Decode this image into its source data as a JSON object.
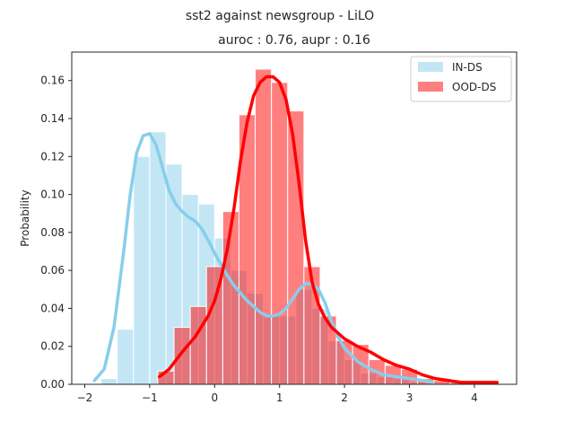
{
  "chart_data": {
    "type": "bar",
    "title": "sst2 against newsgroup  - LiLO",
    "subtitle": "auroc : 0.76, aupr : 0.16",
    "xlabel": "",
    "ylabel": "Probability",
    "xlim": [
      -2.2,
      4.65
    ],
    "ylim": [
      0,
      0.175
    ],
    "xticks": [
      -2,
      -1,
      0,
      1,
      2,
      3,
      4
    ],
    "yticks": [
      0.0,
      0.02,
      0.04,
      0.06,
      0.08,
      0.1,
      0.12,
      0.14,
      0.16
    ],
    "ytick_labels": [
      "0.00",
      "0.02",
      "0.04",
      "0.06",
      "0.08",
      "0.10",
      "0.12",
      "0.14",
      "0.16"
    ],
    "grid": false,
    "legend_position": "top-right",
    "series": [
      {
        "name": "IN-DS",
        "kind": "histogram",
        "color": "#87ceeb",
        "bin_width": 0.25,
        "bins": [
          {
            "x0": -1.75,
            "value": 0.003
          },
          {
            "x0": -1.5,
            "value": 0.029
          },
          {
            "x0": -1.25,
            "value": 0.12
          },
          {
            "x0": -1.0,
            "value": 0.133
          },
          {
            "x0": -0.75,
            "value": 0.116
          },
          {
            "x0": -0.5,
            "value": 0.1
          },
          {
            "x0": -0.25,
            "value": 0.095
          },
          {
            "x0": 0.0,
            "value": 0.077
          },
          {
            "x0": 0.25,
            "value": 0.06
          },
          {
            "x0": 0.5,
            "value": 0.048
          },
          {
            "x0": 0.75,
            "value": 0.037
          },
          {
            "x0": 1.0,
            "value": 0.036
          },
          {
            "x0": 1.25,
            "value": 0.05
          },
          {
            "x0": 1.5,
            "value": 0.04
          },
          {
            "x0": 1.75,
            "value": 0.023
          },
          {
            "x0": 2.0,
            "value": 0.013
          },
          {
            "x0": 2.25,
            "value": 0.006
          },
          {
            "x0": 2.5,
            "value": 0.004
          },
          {
            "x0": 2.75,
            "value": 0.003
          },
          {
            "x0": 3.0,
            "value": 0.001
          }
        ],
        "kde": {
          "x": [
            -1.85,
            -1.7,
            -1.55,
            -1.4,
            -1.3,
            -1.2,
            -1.1,
            -1.0,
            -0.9,
            -0.8,
            -0.7,
            -0.6,
            -0.5,
            -0.4,
            -0.3,
            -0.2,
            -0.1,
            0.0,
            0.1,
            0.2,
            0.3,
            0.4,
            0.5,
            0.6,
            0.7,
            0.8,
            0.9,
            1.0,
            1.1,
            1.2,
            1.3,
            1.4,
            1.5,
            1.6,
            1.7,
            1.8,
            1.9,
            2.0,
            2.2,
            2.4,
            2.6,
            2.8,
            3.0,
            3.2,
            3.35
          ],
          "y": [
            0.002,
            0.008,
            0.03,
            0.07,
            0.1,
            0.122,
            0.131,
            0.132,
            0.126,
            0.114,
            0.102,
            0.095,
            0.091,
            0.088,
            0.086,
            0.082,
            0.076,
            0.069,
            0.063,
            0.057,
            0.052,
            0.048,
            0.044,
            0.041,
            0.038,
            0.036,
            0.036,
            0.037,
            0.04,
            0.045,
            0.05,
            0.053,
            0.053,
            0.05,
            0.043,
            0.033,
            0.025,
            0.019,
            0.012,
            0.008,
            0.005,
            0.004,
            0.003,
            0.002,
            0.001
          ]
        }
      },
      {
        "name": "OOD-DS",
        "kind": "histogram",
        "color": "#ff0000",
        "bin_width": 0.25,
        "bins": [
          {
            "x0": -0.875,
            "value": 0.007
          },
          {
            "x0": -0.625,
            "value": 0.03
          },
          {
            "x0": -0.375,
            "value": 0.041
          },
          {
            "x0": -0.125,
            "value": 0.062
          },
          {
            "x0": 0.125,
            "value": 0.091
          },
          {
            "x0": 0.375,
            "value": 0.142
          },
          {
            "x0": 0.625,
            "value": 0.166
          },
          {
            "x0": 0.875,
            "value": 0.159
          },
          {
            "x0": 1.125,
            "value": 0.144
          },
          {
            "x0": 1.375,
            "value": 0.062
          },
          {
            "x0": 1.625,
            "value": 0.036
          },
          {
            "x0": 1.875,
            "value": 0.023
          },
          {
            "x0": 2.125,
            "value": 0.021
          },
          {
            "x0": 2.375,
            "value": 0.013
          },
          {
            "x0": 2.625,
            "value": 0.01
          },
          {
            "x0": 2.875,
            "value": 0.008
          },
          {
            "x0": 3.125,
            "value": 0.003
          },
          {
            "x0": 3.375,
            "value": 0.002
          },
          {
            "x0": 3.625,
            "value": 0.001
          },
          {
            "x0": 3.875,
            "value": 0.001
          }
        ],
        "kde": {
          "x": [
            -0.85,
            -0.7,
            -0.5,
            -0.3,
            -0.1,
            0.0,
            0.1,
            0.2,
            0.3,
            0.4,
            0.5,
            0.6,
            0.7,
            0.8,
            0.9,
            1.0,
            1.1,
            1.2,
            1.3,
            1.4,
            1.5,
            1.6,
            1.7,
            1.8,
            1.9,
            2.0,
            2.2,
            2.4,
            2.6,
            2.8,
            3.0,
            3.2,
            3.4,
            3.6,
            3.8,
            4.0,
            4.2,
            4.35
          ],
          "y": [
            0.004,
            0.008,
            0.017,
            0.025,
            0.036,
            0.044,
            0.056,
            0.072,
            0.093,
            0.118,
            0.138,
            0.152,
            0.159,
            0.162,
            0.162,
            0.159,
            0.15,
            0.132,
            0.106,
            0.076,
            0.054,
            0.042,
            0.035,
            0.03,
            0.027,
            0.024,
            0.02,
            0.017,
            0.013,
            0.01,
            0.008,
            0.005,
            0.003,
            0.002,
            0.001,
            0.001,
            0.001,
            0.001
          ]
        }
      }
    ]
  }
}
